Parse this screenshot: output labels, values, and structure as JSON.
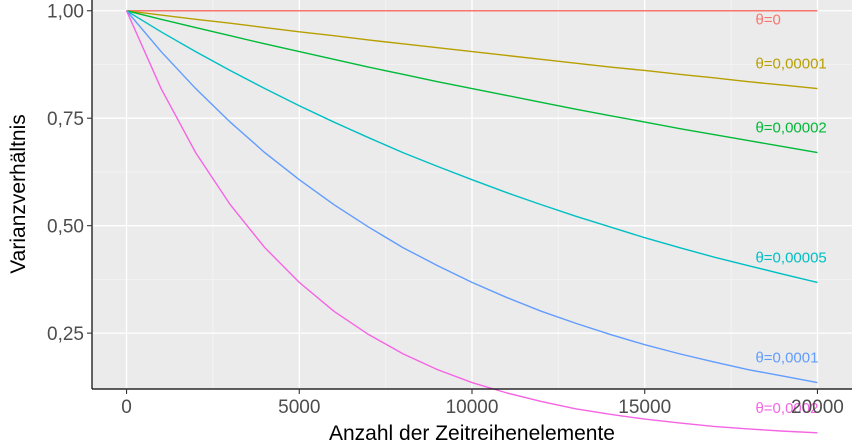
{
  "chart_data": {
    "type": "line",
    "title": "",
    "xlabel": "Anzahl der Zeitreihenelemente",
    "ylabel": "Varianzverhältnis",
    "xlim": [
      -1000,
      21000
    ],
    "ylim": [
      0.12,
      1.025
    ],
    "x_ticks": [
      0,
      5000,
      10000,
      15000,
      20000
    ],
    "x_tick_labels": [
      "0",
      "5000",
      "10000",
      "15000",
      "20000"
    ],
    "y_ticks": [
      0.25,
      0.5,
      0.75,
      1.0
    ],
    "y_tick_labels": [
      "0,25",
      "0,50",
      "0,75",
      "1,00"
    ],
    "grid": true,
    "legend": "direct labels at right end of each line",
    "x": [
      0,
      1000,
      2000,
      3000,
      4000,
      5000,
      6000,
      7000,
      8000,
      9000,
      10000,
      11000,
      12000,
      13000,
      14000,
      15000,
      16000,
      17000,
      18000,
      19000,
      20000
    ],
    "series": [
      {
        "name": "θ=0",
        "color": "#F8766D",
        "values": [
          1.0,
          1.0,
          1.0,
          1.0,
          1.0,
          1.0,
          1.0,
          1.0,
          1.0,
          1.0,
          1.0,
          1.0,
          1.0,
          1.0,
          1.0,
          1.0,
          1.0,
          1.0,
          1.0,
          1.0,
          1.0
        ]
      },
      {
        "name": "θ=0,00001",
        "color": "#B79F00",
        "values": [
          1.0,
          0.99,
          0.98,
          0.971,
          0.961,
          0.951,
          0.942,
          0.932,
          0.923,
          0.914,
          0.905,
          0.896,
          0.887,
          0.878,
          0.869,
          0.861,
          0.852,
          0.844,
          0.835,
          0.827,
          0.819
        ]
      },
      {
        "name": "θ=0,00002",
        "color": "#00BA38",
        "values": [
          1.0,
          0.98,
          0.961,
          0.942,
          0.923,
          0.905,
          0.887,
          0.869,
          0.852,
          0.835,
          0.819,
          0.803,
          0.787,
          0.771,
          0.756,
          0.741,
          0.726,
          0.712,
          0.698,
          0.684,
          0.67
        ]
      },
      {
        "name": "θ=0,00005",
        "color": "#00BFC4",
        "values": [
          1.0,
          0.951,
          0.905,
          0.861,
          0.819,
          0.779,
          0.741,
          0.705,
          0.67,
          0.638,
          0.607,
          0.577,
          0.549,
          0.522,
          0.497,
          0.472,
          0.449,
          0.427,
          0.407,
          0.387,
          0.368
        ]
      },
      {
        "name": "θ=0,0001",
        "color": "#619CFF",
        "values": [
          1.0,
          0.905,
          0.819,
          0.741,
          0.67,
          0.607,
          0.549,
          0.497,
          0.449,
          0.407,
          0.368,
          0.333,
          0.301,
          0.273,
          0.247,
          0.223,
          0.202,
          0.183,
          0.165,
          0.15,
          0.135
        ]
      },
      {
        "name": "θ=0,0002",
        "color": "#F564E3",
        "values": [
          1.0,
          0.819,
          0.67,
          0.549,
          0.449,
          0.368,
          0.301,
          0.247,
          0.202,
          0.165,
          0.135,
          0.111,
          0.091,
          0.074,
          0.061,
          0.05,
          0.041,
          0.033,
          0.027,
          0.022,
          0.018
        ]
      }
    ]
  }
}
